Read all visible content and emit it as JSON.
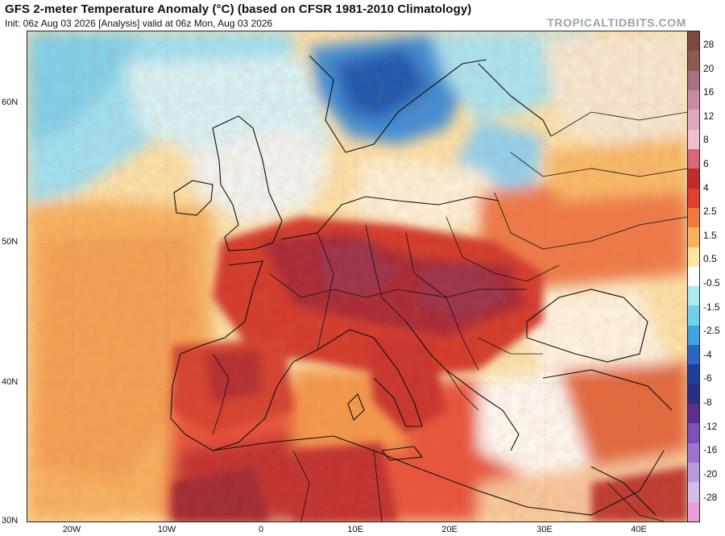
{
  "title": "GFS 2-meter Temperature Anomaly (°C) (based on CFSR 1981-2010 Climatology)",
  "subtitle": "Init: 06z Aug 03 2026   [Analysis]   valid at 06z Mon, Aug 03 2026",
  "brand": "TROPICALTIDBITS.COM",
  "lat_labels": [
    "60N",
    "50N",
    "40N",
    "30N"
  ],
  "lon_labels": [
    "20W",
    "10W",
    "0",
    "10E",
    "20E",
    "30E",
    "40E"
  ],
  "colorbar": {
    "labels": [
      "28",
      "20",
      "16",
      "12",
      "8",
      "6",
      "4",
      "2.5",
      "1.5",
      "0.5",
      "-0.5",
      "-1.5",
      "-2.5",
      "-4",
      "-6",
      "-8",
      "-12",
      "-16",
      "-20",
      "-28"
    ],
    "colors": [
      "#7a4a3c",
      "#8c5a52",
      "#a57083",
      "#c98aa6",
      "#e2a6c0",
      "#f0bfd4",
      "#d9657a",
      "#bf2c2f",
      "#e0402c",
      "#f07a3a",
      "#f6b35c",
      "#fbe6a4",
      "#ffffff",
      "#a8ecf4",
      "#6fd3ec",
      "#3ea4de",
      "#2a67c4",
      "#1a3f9a",
      "#2a2f86",
      "#5a2f8f",
      "#7b50b8",
      "#9a74d0",
      "#b89ade",
      "#d3bde8",
      "#e8a0d8"
    ],
    "thresholds": [
      28,
      20,
      16,
      12,
      8,
      6,
      4,
      2.5,
      1.5,
      0.5,
      -0.5,
      -1.5,
      -2.5,
      -4,
      -6,
      -8,
      -12,
      -16,
      -20,
      -28
    ]
  }
}
